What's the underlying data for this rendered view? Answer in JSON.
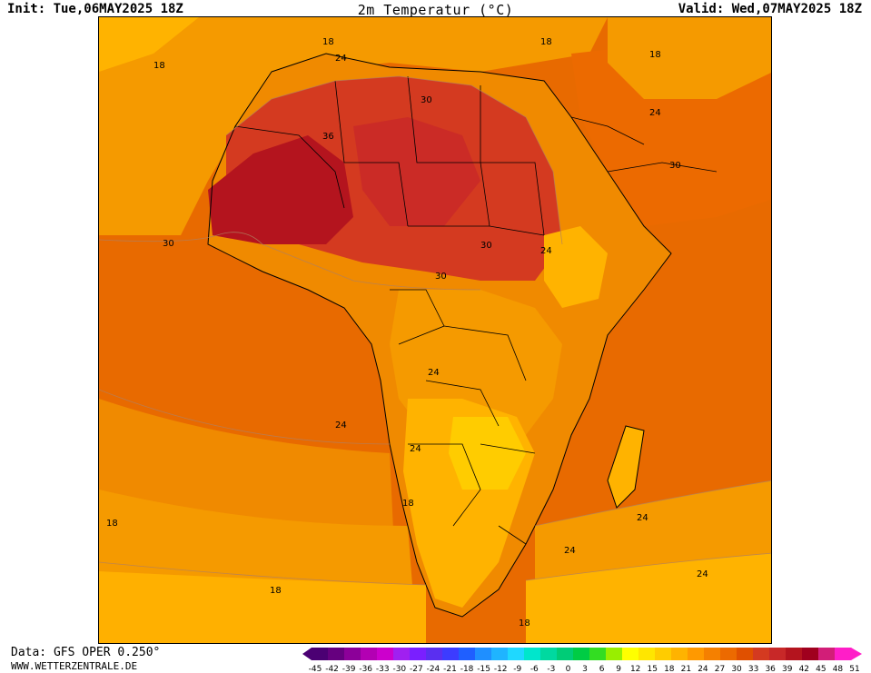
{
  "header": {
    "init": "Init: Tue,06MAY2025 18Z",
    "title": "2m Temperatur (°C)",
    "valid": "Valid: Wed,07MAY2025 18Z"
  },
  "footer": {
    "data_source": "Data: GFS OPER 0.250°",
    "website": "WWW.WETTERZENTRALE.DE"
  },
  "map": {
    "region": "Africa",
    "field": "2m temperature",
    "contour_labels": [
      "18",
      "24",
      "18",
      "18",
      "18",
      "30",
      "36",
      "30",
      "24",
      "30",
      "24",
      "30",
      "30",
      "24",
      "24",
      "24",
      "18",
      "18",
      "24",
      "24",
      "24",
      "18",
      "18",
      "18"
    ]
  },
  "legend": {
    "ticks": [
      "-45",
      "-42",
      "-39",
      "-36",
      "-33",
      "-30",
      "-27",
      "-24",
      "-21",
      "-18",
      "-15",
      "-12",
      "-9",
      "-6",
      "-3",
      "0",
      "3",
      "6",
      "9",
      "12",
      "15",
      "18",
      "21",
      "24",
      "27",
      "30",
      "33",
      "36",
      "39",
      "42",
      "45",
      "48",
      "51"
    ],
    "colors": [
      "#4b0073",
      "#66007f",
      "#8c0099",
      "#b300b3",
      "#cc00cc",
      "#a020f0",
      "#7a1fff",
      "#5a2ff0",
      "#3c3cff",
      "#1f5fff",
      "#1f8fff",
      "#1fb4ff",
      "#1fd8ff",
      "#00e6cc",
      "#00d9a0",
      "#00cc77",
      "#00cc44",
      "#33dd22",
      "#99ee00",
      "#ffff00",
      "#ffe600",
      "#ffcc00",
      "#ffb300",
      "#ff9900",
      "#f58000",
      "#ec6a00",
      "#e05000",
      "#d43a20",
      "#c82828",
      "#b4141e",
      "#a0001e",
      "#d21e78",
      "#ff1ec8"
    ]
  }
}
